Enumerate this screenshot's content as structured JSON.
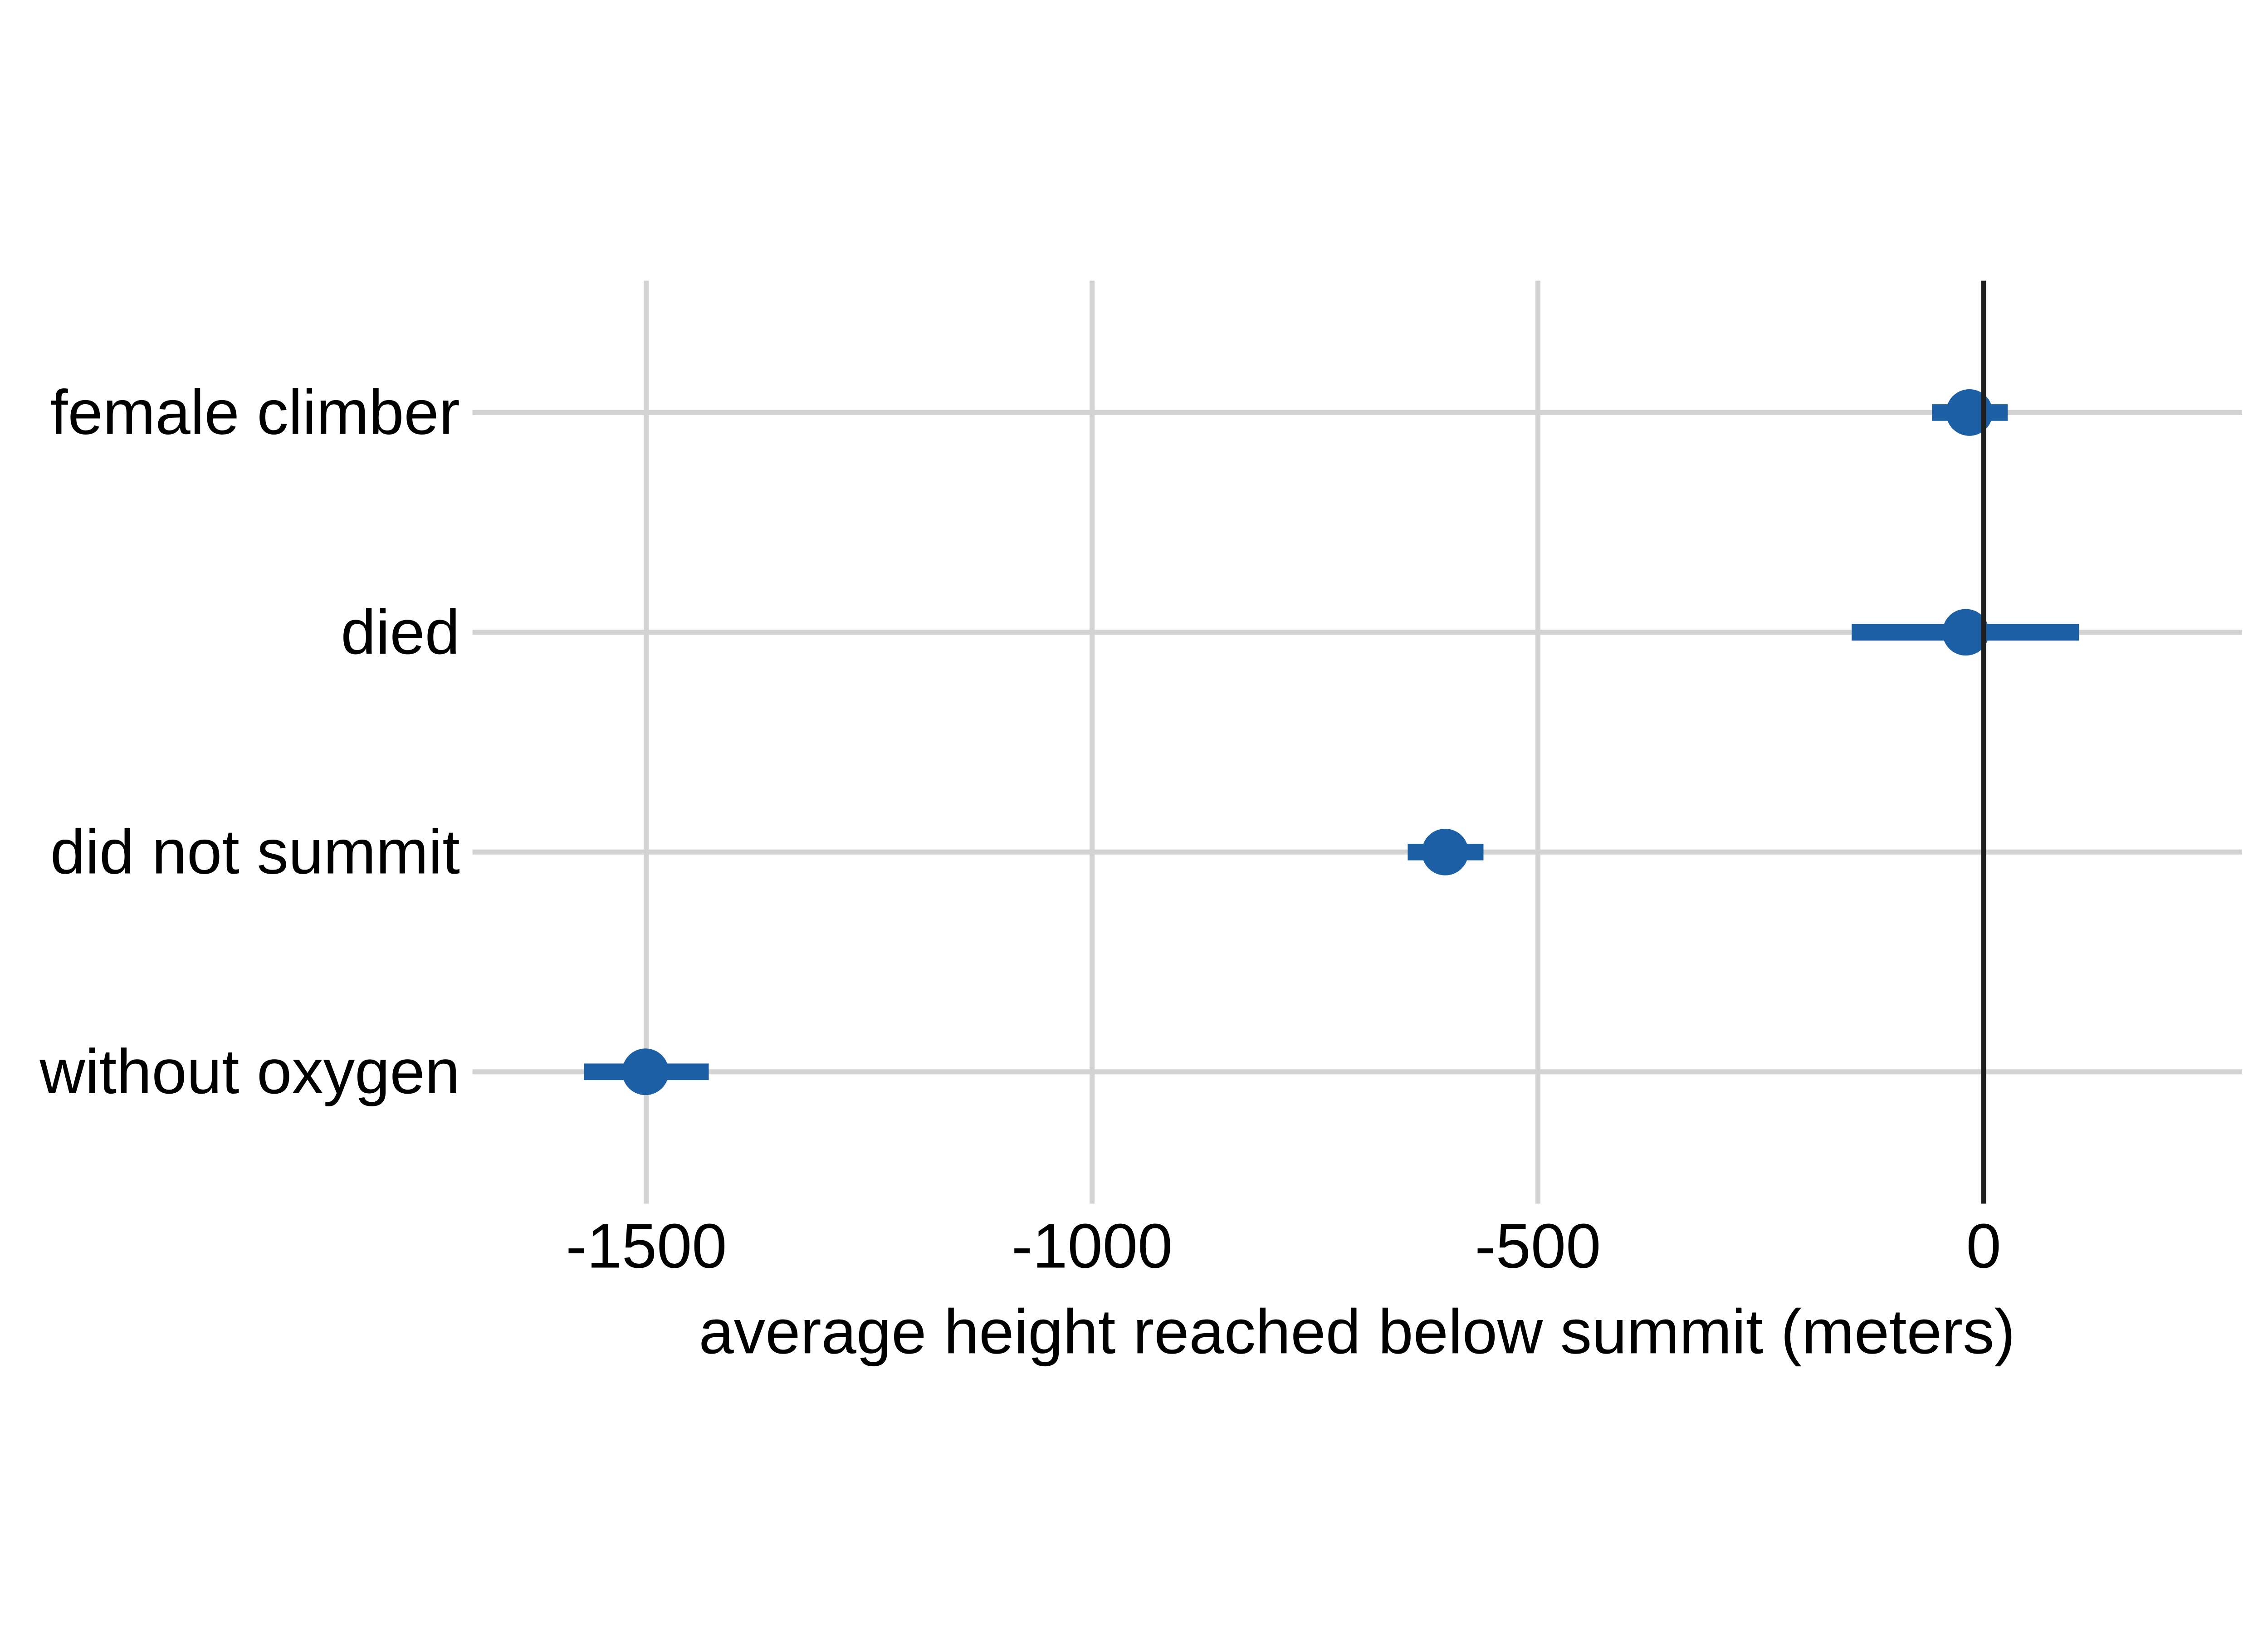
{
  "chart_data": {
    "type": "scatter",
    "subtype": "coefficient-dot-whisker",
    "title": "",
    "xlabel": "average height reached below summit (meters)",
    "ylabel": "",
    "categories": [
      "female climber",
      "died",
      "did not summit",
      "without oxygen"
    ],
    "series": [
      {
        "name": "average height reached below summit (meters)",
        "points": [
          {
            "category": "female climber",
            "estimate": -16,
            "ci_low": -58,
            "ci_high": 27
          },
          {
            "category": "died",
            "estimate": -20,
            "ci_low": -148,
            "ci_high": 107
          },
          {
            "category": "did not summit",
            "estimate": -604,
            "ci_low": -646,
            "ci_high": -561
          },
          {
            "category": "without oxygen",
            "estimate": -1501,
            "ci_low": -1570,
            "ci_high": -1430
          }
        ]
      }
    ],
    "x_ticks": [
      -1500,
      -1000,
      -500,
      0
    ],
    "x_tick_labels": [
      "-1500",
      "-1000",
      "-500",
      "0"
    ],
    "xlim": [
      -1695,
      290
    ],
    "reference_line_x": 0,
    "grid": "on",
    "legend": "none",
    "colors": {
      "point": "#1d5fa5",
      "error_bar": "#1d5fa5",
      "grid": "#d3d3d3",
      "reference_line": "#1f1f1f",
      "text": "#000000",
      "background": "#ffffff"
    }
  }
}
